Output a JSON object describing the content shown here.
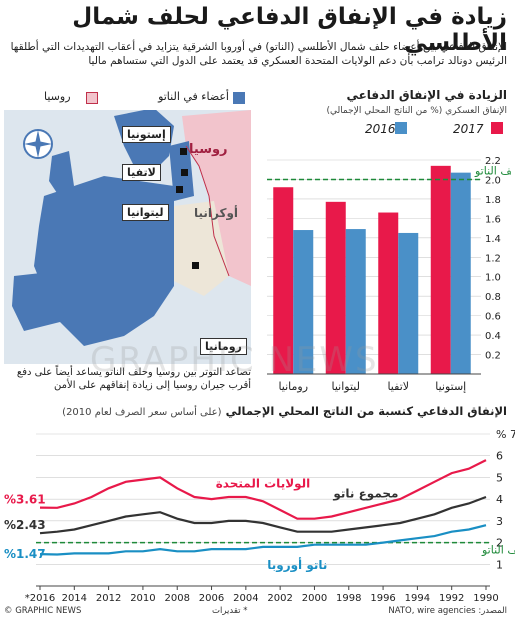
{
  "title": "زيادة في الإنفاق الدفاعي لحلف شمال الأطلسي",
  "intro": "الإنفاق الدفاعي بين أعضاء حلف شمال الأطلسي (الناتو) في أوروبا الشرقية يتزايد في أعقاب التهديدات التي أطلقها الرئيس دونالد ترامب بأن دعم الولايات المتحدة العسكري قد يعتمد على الدول التي ستساهم ماليا",
  "map": {
    "legend_nato": "أعضاء في الناتو",
    "legend_russia": "روسيا",
    "label_russia": "روسيا",
    "label_ukraine": "أوكرانيا",
    "countries": [
      "إستونيا",
      "لاتفيا",
      "ليتوانيا",
      "رومانيا"
    ],
    "caption": "تصاعد التوتر بين روسيا وحلف الناتو يساعد أيضاً على دفع أقرب جيران روسيا إلى زيادة إنفاقهم على الأمن",
    "colors": {
      "nato": "#4a78b5",
      "russia": "#f2c4cc",
      "other": "#ede6d8",
      "sea": "#dde6ee"
    }
  },
  "bar_section": {
    "title": "الزيادة في الإنفاق الدفاعي",
    "subtitle": "الإنفاق العسكري (% من الناتج المحلي الإجمالي)"
  },
  "line_section": {
    "title": "الإنفاق الدفاعي كنسبة من الناتج المحلي الإجمالي",
    "subtitle": "(على أساس سعر الصرف لعام 2010)"
  },
  "footer": {
    "source": "المصدر: NATO, wire agencies",
    "estimate": "* تقديرات",
    "credit": "© GRAPHIC NEWS"
  },
  "watermark": "GRAPHIC NEWS",
  "chart_data": [
    {
      "type": "bar",
      "categories": [
        "إستونيا",
        "لاتفيا",
        "ليتوانيا",
        "رومانيا"
      ],
      "series": [
        {
          "name": "2016",
          "values": [
            2.07,
            1.45,
            1.49,
            1.48
          ],
          "color": "#4a90c8"
        },
        {
          "name": "2017",
          "values": [
            2.14,
            1.66,
            1.77,
            1.92
          ],
          "color": "#e8194a"
        }
      ],
      "ylim": [
        0,
        2.2
      ],
      "yticks": [
        0.2,
        0.4,
        0.6,
        0.8,
        1.0,
        1.2,
        1.4,
        1.6,
        1.8,
        2.0,
        2.2
      ],
      "reference_line": {
        "value": 2.0,
        "label": "توجيهات حلف الناتو"
      },
      "legend": "top"
    },
    {
      "type": "line",
      "x": [
        1990,
        1991,
        1992,
        1993,
        1994,
        1995,
        1996,
        1997,
        1998,
        1999,
        2000,
        2001,
        2002,
        2003,
        2004,
        2005,
        2006,
        2007,
        2008,
        2009,
        2010,
        2011,
        2012,
        2013,
        2014,
        2015,
        2016
      ],
      "xtick_labels": [
        "1990",
        "1992",
        "1994",
        "1996",
        "1998",
        "2000",
        "2002",
        "2004",
        "2006",
        "2008",
        "2010",
        "2012",
        "2014",
        "*2016"
      ],
      "series": [
        {
          "name": "الولايات المتحدة",
          "values": [
            5.8,
            5.4,
            5.2,
            4.8,
            4.4,
            4.0,
            3.8,
            3.6,
            3.4,
            3.2,
            3.1,
            3.1,
            3.5,
            3.9,
            4.1,
            4.1,
            4.0,
            4.1,
            4.5,
            5.0,
            4.9,
            4.8,
            4.5,
            4.1,
            3.8,
            3.6,
            3.61
          ],
          "color": "#e8194a",
          "end_label": "%3.61"
        },
        {
          "name": "مجموع ناتو",
          "values": [
            4.1,
            3.8,
            3.6,
            3.3,
            3.1,
            2.9,
            2.8,
            2.7,
            2.6,
            2.5,
            2.5,
            2.5,
            2.7,
            2.9,
            3.0,
            3.0,
            2.9,
            2.9,
            3.1,
            3.4,
            3.3,
            3.2,
            3.0,
            2.8,
            2.6,
            2.5,
            2.43
          ],
          "color": "#333333",
          "end_label": "%2.43"
        },
        {
          "name": "ناتو أوروبا",
          "values": [
            2.8,
            2.6,
            2.5,
            2.3,
            2.2,
            2.1,
            2.0,
            1.9,
            1.9,
            1.9,
            1.9,
            1.8,
            1.8,
            1.8,
            1.7,
            1.7,
            1.7,
            1.6,
            1.6,
            1.7,
            1.6,
            1.6,
            1.5,
            1.5,
            1.5,
            1.45,
            1.47
          ],
          "color": "#1a8fc4",
          "end_label": "%1.47"
        }
      ],
      "ylim": [
        0,
        7
      ],
      "yticks": [
        1,
        2,
        3,
        4,
        5,
        6,
        7
      ],
      "ytick_top_label": "% 7",
      "reference_line": {
        "value": 2.0,
        "label": "توجيهات حلف الناتو"
      }
    }
  ]
}
